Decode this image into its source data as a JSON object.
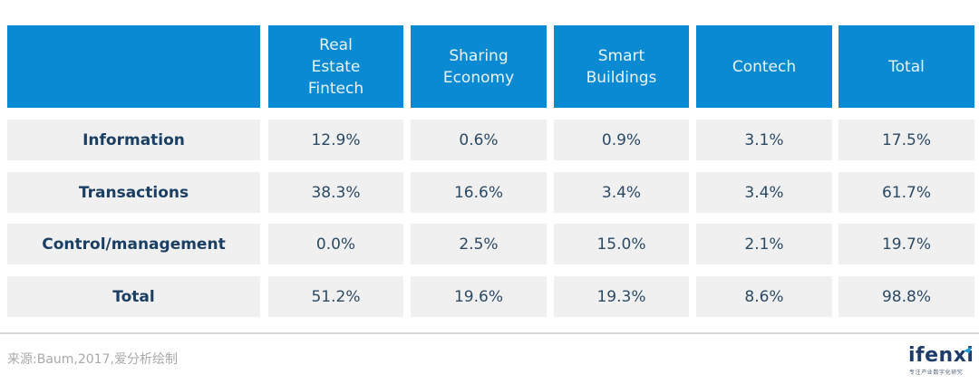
{
  "table": {
    "columns": [
      "",
      "Real\nEstate\nFintech",
      "Sharing\nEconomy",
      "Smart\nBuildings",
      "Contech",
      "Total"
    ],
    "column_lines": [
      [],
      [
        "Real",
        "Estate",
        "Fintech"
      ],
      [
        "Sharing",
        "Economy"
      ],
      [
        "Smart",
        "Buildings"
      ],
      [
        "Contech"
      ],
      [
        "Total"
      ]
    ],
    "rows": [
      {
        "label": "Information",
        "values": [
          "12.9%",
          "0.6%",
          "0.9%",
          "3.1%",
          "17.5%"
        ]
      },
      {
        "label": "Transactions",
        "values": [
          "38.3%",
          "16.6%",
          "3.4%",
          "3.4%",
          "61.7%"
        ]
      },
      {
        "label": "Control/management",
        "values": [
          "0.0%",
          "2.5%",
          "15.0%",
          "2.1%",
          "19.7%"
        ]
      },
      {
        "label": "Total",
        "values": [
          "51.2%",
          "19.6%",
          "19.3%",
          "8.6%",
          "98.8%"
        ]
      }
    ]
  },
  "footer": {
    "source": "来源:Baum,2017,爱分析绘制",
    "logo_text": "ifenxi",
    "logo_sub": "专注产业数字化研究"
  },
  "colors": {
    "header_bg": "#0a8ad2",
    "cell_bg": "#f0f0f0",
    "label_text": "#1a3f63",
    "value_text": "#2b4a66"
  }
}
